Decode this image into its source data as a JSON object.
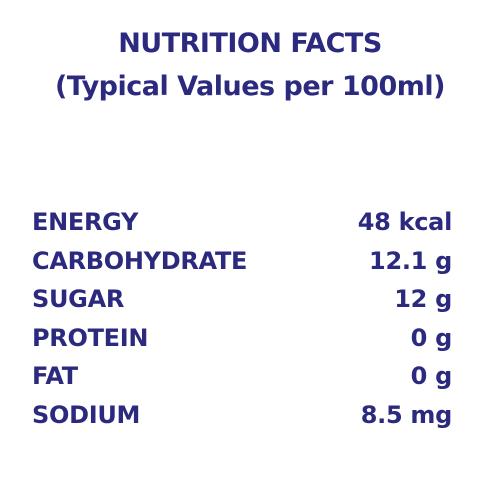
{
  "header": {
    "title": "NUTRITION FACTS",
    "subtitle": "(Typical Values per 100ml)"
  },
  "table": {
    "rows": [
      [
        "ENERGY",
        "48 kcal"
      ],
      [
        "CARBOHYDRATE",
        "12.1 g"
      ],
      [
        "SUGAR",
        "12 g"
      ],
      [
        "PROTEIN",
        "0 g"
      ],
      [
        "FAT",
        "0 g"
      ],
      [
        "SODIUM",
        "8.5 mg"
      ]
    ]
  }
}
